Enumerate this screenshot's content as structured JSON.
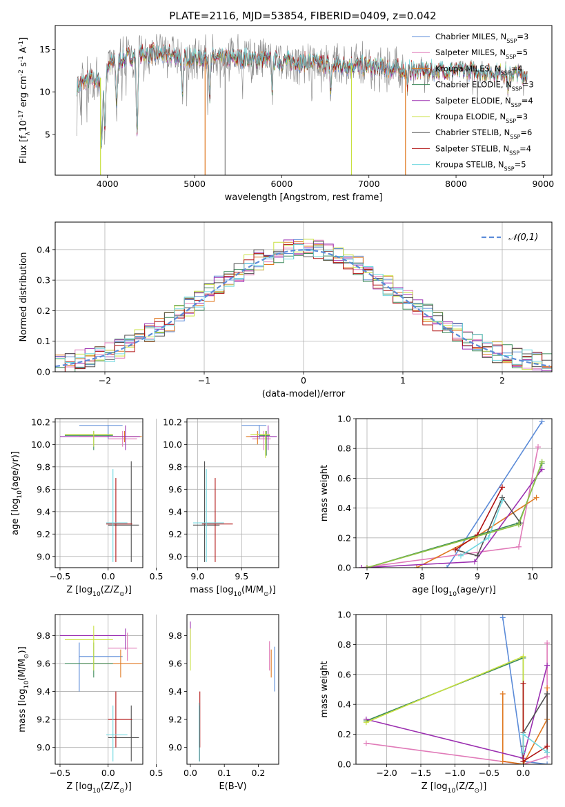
{
  "colors": {
    "chabrier_miles": "#5b8bd8",
    "salpeter_miles": "#e07ab8",
    "kroupa_miles": "#e07820",
    "chabrier_elodie": "#3c8a5a",
    "salpeter_elodie": "#9b2fb0",
    "kroupa_elodie": "#c8e040",
    "chabrier_stelib": "#505050",
    "salpeter_stelib": "#b01010",
    "kroupa_stelib": "#70d8e0",
    "green2": "#8cc048",
    "gray": "#808080",
    "normal": "#5b8bd8",
    "grid": "#b0b0b0"
  },
  "chart_data": [
    {
      "id": "spectrum",
      "type": "line",
      "title": "PLATE=2116, MJD=53854, FIBERID=0409, z=0.042",
      "xlabel": "wavelength [Angstrom, rest frame]",
      "ylabel": "Flux [f$_\\lambda$10$^{-17}$ erg cm$^{-2}$ s$^{-1}$ A$^{-1}$]",
      "xlim": [
        3400,
        9100
      ],
      "ylim": [
        0.2,
        17.8
      ],
      "xticks": [
        4000,
        5000,
        6000,
        7000,
        8000,
        9000
      ],
      "yticks": [
        5,
        10,
        15
      ],
      "grid": false,
      "legend_position": "top-right",
      "series": [
        {
          "name": "Chabrier MILES, N$_{SSP}$=3",
          "color_key": "chabrier_miles"
        },
        {
          "name": "Salpeter MILES, N$_{SSP}$=5",
          "color_key": "salpeter_miles"
        },
        {
          "name": "Kroupa MILES, N$_{SSP}$=4",
          "color_key": "kroupa_miles"
        },
        {
          "name": "Chabrier ELODIE, N$_{SSP}$=3",
          "color_key": "chabrier_elodie"
        },
        {
          "name": "Salpeter ELODIE, N$_{SSP}$=4",
          "color_key": "salpeter_elodie"
        },
        {
          "name": "Kroupa ELODIE, N$_{SSP}$=3",
          "color_key": "kroupa_elodie"
        },
        {
          "name": "Chabrier STELIB, N$_{SSP}$=6",
          "color_key": "chabrier_stelib"
        },
        {
          "name": "Salpeter STELIB, N$_{SSP}$=4",
          "color_key": "salpeter_stelib"
        },
        {
          "name": "Kroupa STELIB, N$_{SSP}$=5",
          "color_key": "kroupa_stelib"
        }
      ],
      "continuum": [
        [
          3650,
          10.5
        ],
        [
          3700,
          11.0
        ],
        [
          3800,
          11.5
        ],
        [
          3900,
          11.3
        ],
        [
          4000,
          13.0
        ],
        [
          4100,
          13.5
        ],
        [
          4200,
          14.0
        ],
        [
          4300,
          14.2
        ],
        [
          4500,
          14.5
        ],
        [
          4700,
          14.4
        ],
        [
          5000,
          14.0
        ],
        [
          5300,
          13.9
        ],
        [
          5500,
          14.0
        ],
        [
          5800,
          13.8
        ],
        [
          6000,
          13.6
        ],
        [
          6300,
          13.5
        ],
        [
          6600,
          13.2
        ],
        [
          7000,
          13.0
        ],
        [
          7400,
          12.6
        ],
        [
          7800,
          12.5
        ],
        [
          8200,
          12.4
        ],
        [
          8600,
          12.2
        ],
        [
          8800,
          12.0
        ]
      ],
      "dips": [
        [
          3935,
          3.8
        ],
        [
          3970,
          5.0
        ],
        [
          4105,
          8.5
        ],
        [
          4340,
          4.5
        ],
        [
          4860,
          9.0
        ],
        [
          5175,
          9.5
        ],
        [
          5890,
          10.5
        ],
        [
          6563,
          10.0
        ],
        [
          7440,
          11.0
        ],
        [
          8600,
          10.0
        ]
      ],
      "glitches": [
        [
          3920,
          0.2,
          "kroupa_elodie"
        ],
        [
          5120,
          0.2,
          "kroupa_miles"
        ],
        [
          5350,
          0.2,
          "gray"
        ],
        [
          6800,
          0.2,
          "kroupa_elodie"
        ],
        [
          7420,
          0.2,
          "kroupa_miles"
        ]
      ]
    },
    {
      "id": "residuals",
      "type": "histogram",
      "xlabel": "(data-model)/error",
      "ylabel": "Normed distribution",
      "xlim": [
        -2.5,
        2.5
      ],
      "ylim": [
        0,
        0.49
      ],
      "xticks": [
        -2,
        -1,
        0,
        1,
        2
      ],
      "yticks": [
        0.0,
        0.1,
        0.2,
        0.3,
        0.4
      ],
      "grid": true,
      "legend_position": "top-right",
      "legend_label": "$\\mathcal{N}(0,1)$",
      "bin_width": 0.1
    },
    {
      "id": "age_vs_Z",
      "type": "errorbar",
      "xlabel": "Z [log$_{10}$($Z/Z_\\odot$)]",
      "ylabel": "age  [log$_{10}$($age/yr$)]",
      "xlim": [
        -0.55,
        0.36
      ],
      "ylim": [
        8.9,
        10.23
      ],
      "xticks": [
        -0.5,
        0.0,
        0.5
      ],
      "yticks": [
        9.0,
        9.2,
        9.4,
        9.6,
        9.8,
        10.0,
        10.2
      ],
      "grid": true,
      "points": [
        {
          "c": "chabrier_miles",
          "x": 0.0,
          "xe": [
            -0.3,
            0.15
          ],
          "y": 10.17,
          "ye": [
            10.05,
            10.17
          ]
        },
        {
          "c": "salpeter_miles",
          "x": 0.15,
          "xe": [
            -0.0,
            0.3
          ],
          "y": 10.05,
          "ye": [
            9.98,
            10.12
          ]
        },
        {
          "c": "kroupa_miles",
          "x": 0.17,
          "xe": [
            -0.3,
            0.35
          ],
          "y": 10.07,
          "ye": [
            10.02,
            10.12
          ]
        },
        {
          "c": "chabrier_elodie",
          "x": -0.15,
          "xe": [
            -0.45,
            0.05
          ],
          "y": 10.08,
          "ye": [
            9.95,
            10.12
          ]
        },
        {
          "c": "salpeter_elodie",
          "x": 0.18,
          "xe": [
            -0.5,
            0.33
          ],
          "y": 10.07,
          "ye": [
            9.95,
            10.17
          ]
        },
        {
          "c": "kroupa_elodie",
          "x": -0.15,
          "xe": [
            -0.45,
            0.05
          ],
          "y": 10.09,
          "ye": [
            9.98,
            10.12
          ]
        },
        {
          "c": "chabrier_stelib",
          "x": 0.24,
          "xe": [
            0.0,
            0.32
          ],
          "y": 9.28,
          "ye": [
            8.95,
            9.85
          ]
        },
        {
          "c": "salpeter_stelib",
          "x": 0.08,
          "xe": [
            -0.02,
            0.25
          ],
          "y": 9.29,
          "ye": [
            8.95,
            9.7
          ]
        },
        {
          "c": "kroupa_stelib",
          "x": 0.05,
          "xe": [
            -0.02,
            0.2
          ],
          "y": 9.3,
          "ye": [
            8.95,
            9.78
          ]
        }
      ]
    },
    {
      "id": "age_vs_mass",
      "type": "errorbar",
      "xlabel": "mass [log$_{10}$($M/M_\\odot$)]",
      "xlim": [
        8.88,
        9.92
      ],
      "ylim": [
        8.9,
        10.23
      ],
      "xticks": [
        9.0,
        9.5
      ],
      "yticks": [
        9.0,
        9.2,
        9.4,
        9.6,
        9.8,
        10.0,
        10.2
      ],
      "grid": true,
      "points": [
        {
          "c": "chabrier_miles",
          "x": 9.7,
          "xe": [
            9.5,
            9.78
          ],
          "y": 10.17,
          "ye": [
            10.05,
            10.17
          ]
        },
        {
          "c": "salpeter_miles",
          "x": 9.75,
          "xe": [
            9.62,
            9.83
          ],
          "y": 10.05,
          "ye": [
            9.95,
            10.12
          ]
        },
        {
          "c": "kroupa_miles",
          "x": 9.68,
          "xe": [
            9.55,
            9.8
          ],
          "y": 10.07,
          "ye": [
            10.0,
            10.12
          ]
        },
        {
          "c": "chabrier_elodie",
          "x": 9.78,
          "xe": [
            9.7,
            9.82
          ],
          "y": 10.08,
          "ye": [
            9.9,
            10.12
          ]
        },
        {
          "c": "salpeter_elodie",
          "x": 9.8,
          "xe": [
            9.6,
            9.9
          ],
          "y": 10.07,
          "ye": [
            9.95,
            10.17
          ]
        },
        {
          "c": "kroupa_elodie",
          "x": 9.77,
          "xe": [
            9.6,
            9.82
          ],
          "y": 10.09,
          "ye": [
            9.88,
            10.12
          ]
        },
        {
          "c": "chabrier_stelib",
          "x": 9.08,
          "xe": [
            8.95,
            9.25
          ],
          "y": 9.28,
          "ye": [
            8.95,
            9.85
          ]
        },
        {
          "c": "salpeter_stelib",
          "x": 9.2,
          "xe": [
            9.05,
            9.4
          ],
          "y": 9.29,
          "ye": [
            8.95,
            9.7
          ]
        },
        {
          "c": "kroupa_stelib",
          "x": 9.1,
          "xe": [
            8.95,
            9.3
          ],
          "y": 9.3,
          "ye": [
            8.95,
            9.78
          ]
        }
      ]
    },
    {
      "id": "weight_vs_age",
      "type": "line",
      "xlabel": "age  [log$_{10}$($age/yr$)]",
      "ylabel": "mass weight",
      "xlim": [
        6.8,
        10.35
      ],
      "ylim": [
        0,
        1
      ],
      "xticks": [
        7,
        8,
        9,
        10
      ],
      "yticks": [
        0.0,
        0.2,
        0.4,
        0.6,
        0.8,
        1.0
      ],
      "grid": true,
      "series": [
        {
          "c": "chabrier_miles",
          "x": [
            8.45,
            10.17
          ],
          "y": [
            0.0,
            0.98
          ]
        },
        {
          "c": "salpeter_miles",
          "x": [
            6.9,
            9.75,
            10.1
          ],
          "y": [
            0.0,
            0.14,
            0.81
          ]
        },
        {
          "c": "kroupa_miles",
          "x": [
            7.9,
            8.95,
            10.07
          ],
          "y": [
            0.0,
            0.2,
            0.47
          ]
        },
        {
          "c": "chabrier_elodie",
          "x": [
            7.0,
            9.75,
            10.17
          ],
          "y": [
            0.0,
            0.3,
            0.7
          ]
        },
        {
          "c": "salpeter_elodie",
          "x": [
            6.9,
            8.95,
            10.17
          ],
          "y": [
            0.0,
            0.04,
            0.66
          ]
        },
        {
          "c": "kroupa_elodie",
          "x": [
            7.0,
            9.75,
            10.17
          ],
          "y": [
            0.0,
            0.29,
            0.71
          ]
        },
        {
          "c": "chabrier_stelib",
          "x": [
            8.6,
            9.0,
            9.45,
            9.78
          ],
          "y": [
            0.12,
            0.08,
            0.47,
            0.3
          ]
        },
        {
          "c": "salpeter_stelib",
          "x": [
            8.6,
            9.0,
            9.45
          ],
          "y": [
            0.12,
            0.22,
            0.54
          ]
        },
        {
          "c": "kroupa_stelib",
          "x": [
            8.7,
            9.2,
            9.45
          ],
          "y": [
            0.08,
            0.2,
            0.45
          ]
        },
        {
          "c": "green2",
          "x": [
            7.0,
            9.75,
            10.17
          ],
          "y": [
            0.0,
            0.29,
            0.71
          ]
        }
      ]
    },
    {
      "id": "mass_vs_Z",
      "type": "errorbar",
      "xlabel": "Z [log$_{10}$($Z/Z_\\odot$)]",
      "ylabel": "mass [log$_{10}$($M/M_\\odot$)]",
      "xlim": [
        -0.55,
        0.36
      ],
      "ylim": [
        8.88,
        9.95
      ],
      "xticks": [
        -0.5,
        0.0,
        0.5
      ],
      "yticks": [
        9.0,
        9.2,
        9.4,
        9.6,
        9.8
      ],
      "grid": true,
      "points": [
        {
          "c": "chabrier_miles",
          "x": -0.3,
          "xe": [
            -0.3,
            0.15
          ],
          "y": 9.65,
          "ye": [
            9.4,
            9.75
          ]
        },
        {
          "c": "salpeter_miles",
          "x": 0.2,
          "xe": [
            -0.0,
            0.3
          ],
          "y": 9.71,
          "ye": [
            9.62,
            9.82
          ]
        },
        {
          "c": "kroupa_miles",
          "x": 0.13,
          "xe": [
            -0.3,
            0.35
          ],
          "y": 9.6,
          "ye": [
            9.5,
            9.7
          ]
        },
        {
          "c": "chabrier_elodie",
          "x": -0.15,
          "xe": [
            -0.45,
            0.05
          ],
          "y": 9.6,
          "ye": [
            9.5,
            9.75
          ]
        },
        {
          "c": "salpeter_elodie",
          "x": 0.18,
          "xe": [
            -0.5,
            0.18
          ],
          "y": 9.8,
          "ye": [
            9.7,
            9.85
          ]
        },
        {
          "c": "kroupa_elodie",
          "x": -0.15,
          "xe": [
            -0.45,
            0.05
          ],
          "y": 9.77,
          "ye": [
            9.55,
            9.87
          ]
        },
        {
          "c": "chabrier_stelib",
          "x": 0.24,
          "xe": [
            0.0,
            0.32
          ],
          "y": 9.07,
          "ye": [
            8.9,
            9.3
          ]
        },
        {
          "c": "salpeter_stelib",
          "x": 0.08,
          "xe": [
            0.0,
            0.25
          ],
          "y": 9.2,
          "ye": [
            9.0,
            9.4
          ]
        },
        {
          "c": "kroupa_stelib",
          "x": 0.05,
          "xe": [
            -0.02,
            0.2
          ],
          "y": 9.09,
          "ye": [
            8.9,
            9.3
          ]
        }
      ]
    },
    {
      "id": "mass_vs_ebv",
      "type": "errorbar",
      "xlabel": "E(B-V)",
      "xlim": [
        -0.01,
        0.26
      ],
      "ylim": [
        8.88,
        9.95
      ],
      "xticks": [
        0.0,
        0.1,
        0.2
      ],
      "yticks": [
        9.0,
        9.2,
        9.4,
        9.6,
        9.8
      ],
      "grid": false,
      "points": [
        {
          "c": "chabrier_miles",
          "x": 0.248,
          "y": 9.6,
          "ye": [
            9.4,
            9.72
          ]
        },
        {
          "c": "salpeter_miles",
          "x": 0.233,
          "y": 9.64,
          "ye": [
            9.55,
            9.76
          ]
        },
        {
          "c": "kroupa_miles",
          "x": 0.238,
          "y": 9.6,
          "ye": [
            9.5,
            9.7
          ]
        },
        {
          "c": "salpeter_elodie",
          "x": 0.0,
          "y": 9.8,
          "ye": [
            9.7,
            9.9
          ]
        },
        {
          "c": "kroupa_elodie",
          "x": 0.0,
          "y": 9.7,
          "ye": [
            9.55,
            9.85
          ]
        },
        {
          "c": "salpeter_stelib",
          "x": 0.028,
          "y": 9.2,
          "ye": [
            9.0,
            9.4
          ]
        },
        {
          "c": "chabrier_stelib",
          "x": 0.027,
          "y": 9.07,
          "ye": [
            8.9,
            9.3
          ]
        },
        {
          "c": "kroupa_stelib",
          "x": 0.026,
          "y": 9.09,
          "ye": [
            8.9,
            9.32
          ]
        }
      ]
    },
    {
      "id": "weight_vs_Z",
      "type": "line",
      "xlabel": "Z [log$_{10}$($Z/Z_\\odot$)]",
      "ylabel": "mass weight",
      "xlim": [
        -2.45,
        0.42
      ],
      "ylim": [
        0,
        1
      ],
      "xticks": [
        -2.0,
        -1.5,
        -1.0,
        -0.5,
        0.0
      ],
      "yticks": [
        0.0,
        0.2,
        0.4,
        0.6,
        0.8,
        1.0
      ],
      "grid": true,
      "series": [
        {
          "c": "chabrier_miles",
          "x": [
            -0.3,
            0.0,
            0.35
          ],
          "y": [
            0.98,
            0.02,
            0.0
          ]
        },
        {
          "c": "salpeter_miles",
          "x": [
            -2.3,
            0.0,
            0.35,
            0.35
          ],
          "y": [
            0.14,
            0.0,
            0.05,
            0.81
          ]
        },
        {
          "c": "kroupa_miles",
          "x": [
            -0.3,
            -0.3,
            0.0,
            0.35,
            0.35
          ],
          "y": [
            0.47,
            0.02,
            0.0,
            0.3,
            0.51
          ]
        },
        {
          "c": "chabrier_elodie",
          "x": [
            -2.3,
            0.0,
            0.0
          ],
          "y": [
            0.29,
            0.71,
            0.0
          ]
        },
        {
          "c": "salpeter_elodie",
          "x": [
            -2.3,
            0.0,
            0.35
          ],
          "y": [
            0.3,
            0.04,
            0.66
          ]
        },
        {
          "c": "kroupa_elodie",
          "x": [
            -2.3,
            0.0,
            0.0
          ],
          "y": [
            0.28,
            0.72,
            0.0
          ]
        },
        {
          "c": "chabrier_stelib",
          "x": [
            0.0,
            0.0,
            0.35,
            0.35
          ],
          "y": [
            0.12,
            0.21,
            0.47,
            0.08
          ]
        },
        {
          "c": "salpeter_stelib",
          "x": [
            0.0,
            0.0,
            0.35
          ],
          "y": [
            0.54,
            0.02,
            0.12
          ]
        },
        {
          "c": "kroupa_stelib",
          "x": [
            0.0,
            0.0,
            0.35
          ],
          "y": [
            0.08,
            0.2,
            0.08
          ]
        }
      ]
    }
  ]
}
